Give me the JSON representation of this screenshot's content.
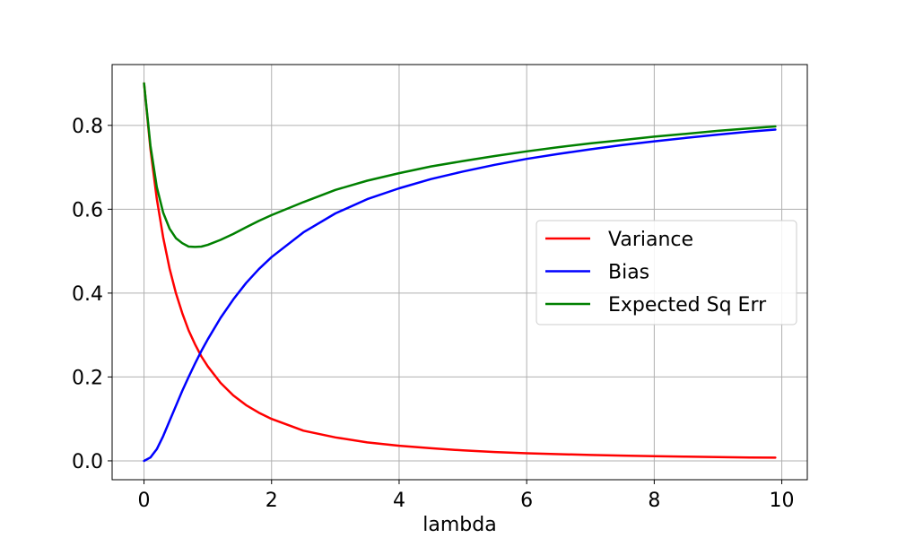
{
  "chart_data": {
    "type": "line",
    "title": "",
    "xlabel": "lambda",
    "ylabel": "",
    "xlim": [
      -0.5,
      10.4
    ],
    "ylim": [
      -0.045,
      0.945
    ],
    "xticks": [
      0,
      2,
      4,
      6,
      8,
      10
    ],
    "yticks": [
      0.0,
      0.2,
      0.4,
      0.6,
      0.8
    ],
    "xtick_labels": [
      "0",
      "2",
      "4",
      "6",
      "8",
      "10"
    ],
    "ytick_labels": [
      "0.0",
      "0.2",
      "0.4",
      "0.6",
      "0.8"
    ],
    "grid": true,
    "legend_position": "center-right",
    "x": [
      0,
      0.1,
      0.2,
      0.3,
      0.4,
      0.5,
      0.6,
      0.7,
      0.8,
      0.9,
      1.0,
      1.2,
      1.4,
      1.6,
      1.8,
      2.0,
      2.5,
      3.0,
      3.5,
      4.0,
      4.5,
      5.0,
      5.5,
      6.0,
      6.5,
      7.0,
      7.5,
      8.0,
      8.5,
      9.0,
      9.5,
      9.9
    ],
    "series": [
      {
        "name": "Variance",
        "color": "#ff0000",
        "values": [
          0.9,
          0.744,
          0.625,
          0.533,
          0.459,
          0.4,
          0.352,
          0.311,
          0.278,
          0.249,
          0.225,
          0.186,
          0.156,
          0.133,
          0.115,
          0.1,
          0.072,
          0.056,
          0.044,
          0.036,
          0.03,
          0.025,
          0.021,
          0.018,
          0.016,
          0.014,
          0.0125,
          0.011,
          0.0099,
          0.0089,
          0.008,
          0.0075
        ]
      },
      {
        "name": "Bias",
        "color": "#0000ff",
        "values": [
          0.0,
          0.008,
          0.028,
          0.059,
          0.095,
          0.131,
          0.167,
          0.2,
          0.232,
          0.262,
          0.29,
          0.341,
          0.385,
          0.424,
          0.457,
          0.486,
          0.545,
          0.59,
          0.624,
          0.65,
          0.672,
          0.69,
          0.706,
          0.72,
          0.732,
          0.743,
          0.753,
          0.762,
          0.77,
          0.778,
          0.785,
          0.79
        ]
      },
      {
        "name": "Expected Sq Err",
        "color": "#008000",
        "values": [
          0.9,
          0.752,
          0.653,
          0.592,
          0.554,
          0.531,
          0.519,
          0.511,
          0.51,
          0.511,
          0.515,
          0.527,
          0.541,
          0.557,
          0.572,
          0.586,
          0.617,
          0.646,
          0.668,
          0.686,
          0.702,
          0.715,
          0.727,
          0.738,
          0.748,
          0.757,
          0.765,
          0.773,
          0.78,
          0.787,
          0.793,
          0.7975
        ]
      }
    ]
  }
}
